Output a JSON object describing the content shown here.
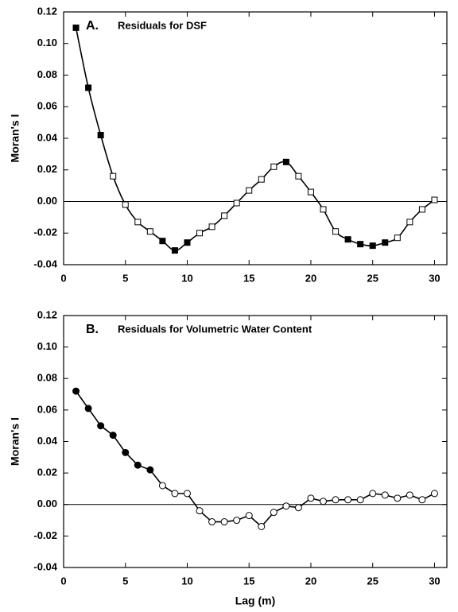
{
  "chart_data": [
    {
      "type": "line",
      "panel": "A.",
      "title": "Residuals for DSF",
      "ylabel": "Moran's I",
      "x": [
        1,
        2,
        3,
        4,
        5,
        6,
        7,
        8,
        9,
        10,
        11,
        12,
        13,
        14,
        15,
        16,
        17,
        18,
        19,
        20,
        21,
        22,
        23,
        24,
        25,
        26,
        27,
        28,
        29,
        30
      ],
      "series": [
        {
          "color": "#000000",
          "marker": "square",
          "smooth": true,
          "values": [
            0.11,
            0.072,
            0.042,
            0.016,
            -0.002,
            -0.013,
            -0.019,
            -0.025,
            -0.031,
            -0.026,
            -0.02,
            -0.016,
            -0.009,
            -0.001,
            0.007,
            0.014,
            0.022,
            0.025,
            0.016,
            0.006,
            -0.005,
            -0.019,
            -0.024,
            -0.027,
            -0.028,
            -0.026,
            -0.023,
            -0.013,
            -0.005,
            0.001
          ],
          "filled": [
            true,
            true,
            true,
            false,
            false,
            false,
            false,
            true,
            true,
            true,
            false,
            false,
            false,
            false,
            false,
            false,
            false,
            true,
            false,
            false,
            false,
            false,
            true,
            true,
            true,
            true,
            false,
            false,
            false,
            false
          ]
        }
      ],
      "xlim": [
        0,
        31
      ],
      "xticks": [
        0,
        5,
        10,
        15,
        20,
        25,
        30
      ],
      "ylim": [
        -0.04,
        0.12
      ],
      "yticks": [
        {
          "value": -0.04,
          "label": "-0.04"
        },
        -0.02,
        {
          "value": 0,
          "label": "0.00"
        },
        0.02,
        0.04,
        0.06,
        0.08,
        {
          "value": 0.1,
          "label": "0.10"
        },
        0.12
      ],
      "hline": 0
    },
    {
      "type": "line",
      "panel": "B.",
      "title": "Residuals for Volumetric Water Content",
      "ylabel": "Moran's I",
      "xlabel": "Lag (m)",
      "x": [
        1,
        2,
        3,
        4,
        5,
        6,
        7,
        8,
        9,
        10,
        11,
        12,
        13,
        14,
        15,
        16,
        17,
        18,
        19,
        20,
        21,
        22,
        23,
        24,
        25,
        26,
        27,
        28,
        29,
        30
      ],
      "series": [
        {
          "color": "#000000",
          "marker": "circle",
          "smooth": false,
          "values": [
            0.072,
            0.061,
            0.05,
            0.044,
            0.033,
            0.025,
            0.022,
            0.012,
            0.007,
            0.007,
            -0.004,
            -0.011,
            -0.011,
            -0.01,
            -0.007,
            -0.014,
            -0.005,
            -0.001,
            -0.002,
            0.004,
            0.002,
            0.003,
            0.003,
            0.003,
            0.007,
            0.006,
            0.004,
            0.006,
            0.003,
            0.007
          ],
          "filled": [
            true,
            true,
            true,
            true,
            true,
            true,
            true,
            false,
            false,
            false,
            false,
            false,
            false,
            false,
            false,
            false,
            false,
            false,
            false,
            false,
            false,
            false,
            false,
            false,
            false,
            false,
            false,
            false,
            false,
            false
          ]
        }
      ],
      "xlim": [
        0,
        31
      ],
      "xticks": [
        0,
        5,
        10,
        15,
        20,
        25,
        30
      ],
      "ylim": [
        -0.04,
        0.12
      ],
      "yticks": [
        {
          "value": -0.04,
          "label": "-0.04"
        },
        -0.02,
        {
          "value": 0,
          "label": "0.00"
        },
        0.02,
        0.04,
        0.06,
        0.08,
        {
          "value": 0.1,
          "label": "0.10"
        },
        0.12
      ],
      "hline": 0
    }
  ]
}
